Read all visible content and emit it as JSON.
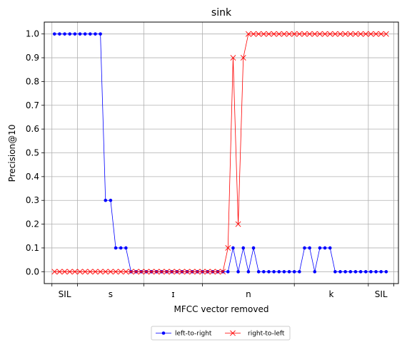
{
  "chart_data": {
    "type": "line",
    "title": "sink",
    "xlabel": "MFCC vector removed",
    "ylabel": "Precision@10",
    "ylim": [
      -0.05,
      1.05
    ],
    "yticks": [
      "0.0",
      "0.1",
      "0.2",
      "0.3",
      "0.4",
      "0.5",
      "0.6",
      "0.7",
      "0.8",
      "0.9",
      "1.0"
    ],
    "xlim": [
      -2.0,
      67.4
    ],
    "segments": [
      {
        "label": "SIL",
        "start": -0.5,
        "end": 4.5
      },
      {
        "label": "s",
        "start": 4.5,
        "end": 17.5
      },
      {
        "label": "ɪ",
        "start": 17.5,
        "end": 29.0
      },
      {
        "label": "n",
        "start": 29.0,
        "end": 47.0
      },
      {
        "label": "k",
        "start": 47.0,
        "end": 61.5
      },
      {
        "label": "SIL",
        "start": 61.5,
        "end": 66.5
      }
    ],
    "grid": true,
    "legend_position": "below",
    "series": [
      {
        "name": "left-to-right",
        "color": "#0000ff",
        "marker": "dot",
        "x": [
          0,
          1,
          2,
          3,
          4,
          5,
          6,
          7,
          8,
          9,
          10,
          11,
          12,
          13,
          14,
          15,
          16,
          17,
          18,
          19,
          20,
          21,
          22,
          23,
          24,
          25,
          26,
          27,
          28,
          29,
          30,
          31,
          32,
          33,
          34,
          35,
          36,
          37,
          38,
          39,
          40,
          41,
          42,
          43,
          44,
          45,
          46,
          47,
          48,
          49,
          50,
          51,
          52,
          53,
          54,
          55,
          56,
          57,
          58,
          59,
          60,
          61,
          62,
          63,
          64,
          65
        ],
        "values": [
          1.0,
          1.0,
          1.0,
          1.0,
          1.0,
          1.0,
          1.0,
          1.0,
          1.0,
          1.0,
          0.3,
          0.3,
          0.1,
          0.1,
          0.1,
          0.0,
          0.0,
          0.0,
          0.0,
          0.0,
          0.0,
          0.0,
          0.0,
          0.0,
          0.0,
          0.0,
          0.0,
          0.0,
          0.0,
          0.0,
          0.0,
          0.0,
          0.0,
          0.0,
          0.0,
          0.1,
          0.0,
          0.1,
          0.0,
          0.1,
          0.0,
          0.0,
          0.0,
          0.0,
          0.0,
          0.0,
          0.0,
          0.0,
          0.0,
          0.1,
          0.1,
          0.0,
          0.1,
          0.1,
          0.1,
          0.0,
          0.0,
          0.0,
          0.0,
          0.0,
          0.0,
          0.0,
          0.0,
          0.0,
          0.0,
          0.0
        ]
      },
      {
        "name": "right-to-left",
        "color": "#ff0000",
        "marker": "x",
        "x": [
          0,
          1,
          2,
          3,
          4,
          5,
          6,
          7,
          8,
          9,
          10,
          11,
          12,
          13,
          14,
          15,
          16,
          17,
          18,
          19,
          20,
          21,
          22,
          23,
          24,
          25,
          26,
          27,
          28,
          29,
          30,
          31,
          32,
          33,
          34,
          35,
          36,
          37,
          38,
          39,
          40,
          41,
          42,
          43,
          44,
          45,
          46,
          47,
          48,
          49,
          50,
          51,
          52,
          53,
          54,
          55,
          56,
          57,
          58,
          59,
          60,
          61,
          62,
          63,
          64,
          65
        ],
        "values": [
          0.0,
          0.0,
          0.0,
          0.0,
          0.0,
          0.0,
          0.0,
          0.0,
          0.0,
          0.0,
          0.0,
          0.0,
          0.0,
          0.0,
          0.0,
          0.0,
          0.0,
          0.0,
          0.0,
          0.0,
          0.0,
          0.0,
          0.0,
          0.0,
          0.0,
          0.0,
          0.0,
          0.0,
          0.0,
          0.0,
          0.0,
          0.0,
          0.0,
          0.0,
          0.1,
          0.9,
          0.2,
          0.9,
          1.0,
          1.0,
          1.0,
          1.0,
          1.0,
          1.0,
          1.0,
          1.0,
          1.0,
          1.0,
          1.0,
          1.0,
          1.0,
          1.0,
          1.0,
          1.0,
          1.0,
          1.0,
          1.0,
          1.0,
          1.0,
          1.0,
          1.0,
          1.0,
          1.0,
          1.0,
          1.0,
          1.0
        ]
      }
    ]
  }
}
